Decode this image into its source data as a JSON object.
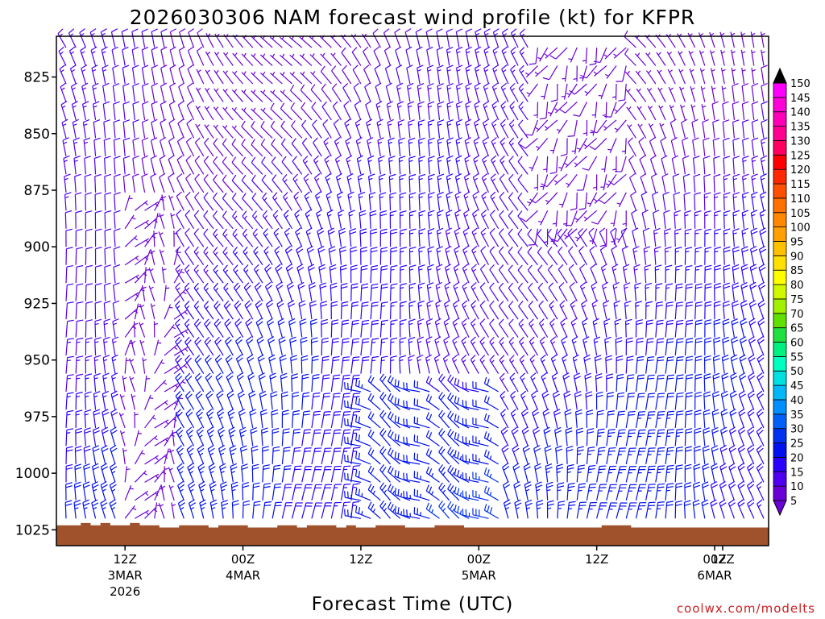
{
  "chart_data": {
    "type": "wind_barb_profile",
    "title": "2026030306 NAM forecast wind profile (kt) for KFPR",
    "xlabel": "Forecast Time (UTC)",
    "ylabel": "",
    "pressure_range_hpa": [
      807,
      1032
    ],
    "pressure_ticks": [
      {
        "value": 825,
        "label": "825"
      },
      {
        "value": 850,
        "label": "850"
      },
      {
        "value": 875,
        "label": "875"
      },
      {
        "value": 900,
        "label": "900"
      },
      {
        "value": 925,
        "label": "925"
      },
      {
        "value": 950,
        "label": "950"
      },
      {
        "value": 975,
        "label": "975"
      },
      {
        "value": 1000,
        "label": "1000"
      },
      {
        "value": 1025,
        "label": "1025"
      }
    ],
    "forecast_hour_range": [
      0,
      71
    ],
    "time_ticks": [
      {
        "hour": 6,
        "label": "12Z",
        "date": "3MAR",
        "year": "2026"
      },
      {
        "hour": 18,
        "label": "00Z",
        "date": "4MAR",
        "year": ""
      },
      {
        "hour": 30,
        "label": "12Z",
        "date": "",
        "year": ""
      },
      {
        "hour": 42,
        "label": "00Z",
        "date": "5MAR",
        "year": ""
      },
      {
        "hour": 54,
        "label": "12Z",
        "date": "",
        "year": ""
      },
      {
        "hour": 66,
        "label": "00Z",
        "date": "6MAR",
        "year": ""
      },
      {
        "hour": 78,
        "label": "12Z",
        "date": "",
        "year": ""
      }
    ],
    "barb_levels_hpa": [
      812,
      820,
      828,
      836,
      844,
      852,
      860,
      868,
      876,
      884,
      892,
      900,
      908,
      916,
      924,
      932,
      940,
      948,
      956,
      964,
      972,
      980,
      988,
      996,
      1004,
      1012,
      1020
    ],
    "barb_hours_count": 72,
    "surface_pressure_hpa": [
      1023,
      1023,
      1022,
      1023,
      1022,
      1023,
      1023,
      1022,
      1023,
      1023,
      1024,
      1024,
      1023,
      1023,
      1023,
      1024,
      1023,
      1023,
      1023,
      1024,
      1024,
      1024,
      1023,
      1023,
      1024,
      1023,
      1023,
      1023,
      1024,
      1023,
      1024,
      1024,
      1023,
      1023,
      1023,
      1024,
      1024,
      1024,
      1023,
      1023,
      1023,
      1024,
      1024,
      1024,
      1024,
      1024,
      1024,
      1024,
      1024,
      1024,
      1024,
      1024,
      1024,
      1024,
      1024,
      1023,
      1023,
      1023,
      1024,
      1024,
      1024,
      1024,
      1024,
      1024,
      1024,
      1024,
      1024,
      1024,
      1024,
      1024,
      1024,
      1024
    ],
    "colorbar": {
      "units": "kt",
      "levels": [
        5,
        10,
        15,
        20,
        25,
        30,
        35,
        40,
        45,
        50,
        55,
        60,
        65,
        70,
        75,
        80,
        85,
        90,
        95,
        100,
        105,
        110,
        115,
        120,
        125,
        130,
        135,
        140,
        145,
        150
      ],
      "colors": [
        "#6a00d8",
        "#5000f0",
        "#2800ff",
        "#0010ee",
        "#0030f0",
        "#0060f8",
        "#0090ff",
        "#00b8f8",
        "#00e0e0",
        "#00ffc0",
        "#00f080",
        "#20e040",
        "#60e000",
        "#a0f000",
        "#d0f800",
        "#ffff00",
        "#ffe000",
        "#ffc000",
        "#ffa000",
        "#ff8800",
        "#ff7000",
        "#ff5000",
        "#ff2800",
        "#ff0000",
        "#ff0060",
        "#ff0090",
        "#ff00b8",
        "#ff00d8",
        "#ff00ff",
        "#ff40ff"
      ]
    },
    "terrain_color": "#a0522d",
    "credit": "coolwx.com/modelts"
  }
}
